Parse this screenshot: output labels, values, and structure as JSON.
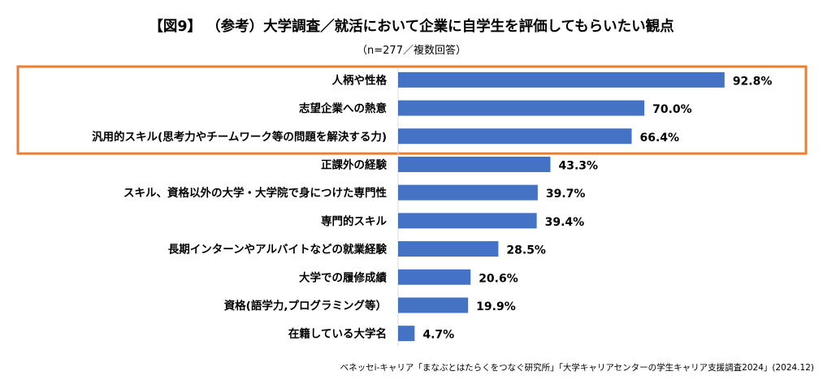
{
  "chart_data": {
    "type": "bar",
    "orientation": "horizontal",
    "title": "【図9】 （参考）大学調査／就活において企業に自学生を評価してもらいたい観点",
    "subtitle": "（n=277／複数回答）",
    "categories": [
      "人柄や性格",
      "志望企業への熱意",
      "汎用的スキル(思考力やチームワーク等の問題を解決する力)",
      "正課外の経験",
      "スキル、資格以外の大学・大学院で身につけた専門性",
      "専門的スキル",
      "長期インターンやアルバイトなどの就業経験",
      "大学での履修成績",
      "資格(語学力,プログラミング等）",
      "在籍している大学名"
    ],
    "values": [
      92.8,
      70.0,
      66.4,
      43.3,
      39.7,
      39.4,
      28.5,
      20.6,
      19.9,
      4.7
    ],
    "value_labels": [
      "92.8%",
      "70.0%",
      "66.4%",
      "43.3%",
      "39.7%",
      "39.4%",
      "28.5%",
      "20.6%",
      "19.9%",
      "4.7%"
    ],
    "xlim": [
      0,
      100
    ],
    "grid": false,
    "bar_color": "#4472C4",
    "highlight": {
      "first_n": 3,
      "border_color": "#ED7D31"
    },
    "source": "ベネッセi-キャリア「まなぶとはたらくをつなぐ研究所」「大学キャリアセンターの学生キャリア支援調査2024」(2024.12)"
  }
}
